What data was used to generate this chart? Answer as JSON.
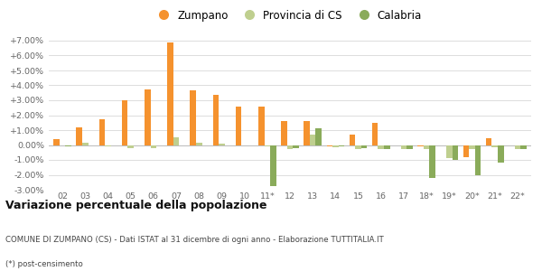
{
  "categories": [
    "02",
    "03",
    "04",
    "05",
    "06",
    "07",
    "08",
    "09",
    "10",
    "11*",
    "12",
    "13",
    "14",
    "15",
    "16",
    "17",
    "18*",
    "19*",
    "20*",
    "21*",
    "22*"
  ],
  "zumpano": [
    0.4,
    1.2,
    1.75,
    3.0,
    3.7,
    6.9,
    3.65,
    3.35,
    2.6,
    2.6,
    1.6,
    1.6,
    -0.1,
    0.7,
    1.5,
    -0.05,
    -0.1,
    0.0,
    -0.8,
    0.45,
    0.0
  ],
  "provincia": [
    -0.05,
    0.15,
    -0.1,
    -0.2,
    -0.2,
    0.5,
    0.15,
    0.1,
    -0.05,
    -0.1,
    -0.3,
    0.7,
    -0.15,
    -0.25,
    -0.25,
    -0.25,
    -0.25,
    -0.85,
    -0.25,
    -0.15,
    -0.25
  ],
  "calabria": [
    -0.1,
    0.0,
    0.0,
    0.0,
    0.0,
    0.0,
    0.0,
    0.0,
    0.0,
    -2.75,
    -0.2,
    1.1,
    -0.1,
    -0.2,
    -0.25,
    -0.25,
    -2.2,
    -1.0,
    -2.0,
    -1.2,
    -0.3
  ],
  "color_zumpano": "#f5922e",
  "color_provincia": "#bfcf8f",
  "color_calabria": "#8aab5a",
  "background_color": "#ffffff",
  "grid_color": "#d8d8d8",
  "yticks": [
    -3.0,
    -2.0,
    -1.0,
    0.0,
    1.0,
    2.0,
    3.0,
    4.0,
    5.0,
    6.0,
    7.0
  ],
  "ytick_labels": [
    "-3.00%",
    "-2.00%",
    "-1.00%",
    "0.00%",
    "+1.00%",
    "+2.00%",
    "+3.00%",
    "+4.00%",
    "+5.00%",
    "+6.00%",
    "+7.00%"
  ],
  "ylabel_min": -3.0,
  "ylabel_max": 7.0,
  "legend_labels": [
    "Zumpano",
    "Provincia di CS",
    "Calabria"
  ],
  "title": "Variazione percentuale della popolazione",
  "footnote1": "COMUNE DI ZUMPANO (CS) - Dati ISTAT al 31 dicembre di ogni anno - Elaborazione TUTTITALIA.IT",
  "footnote2": "(*) post-censimento"
}
